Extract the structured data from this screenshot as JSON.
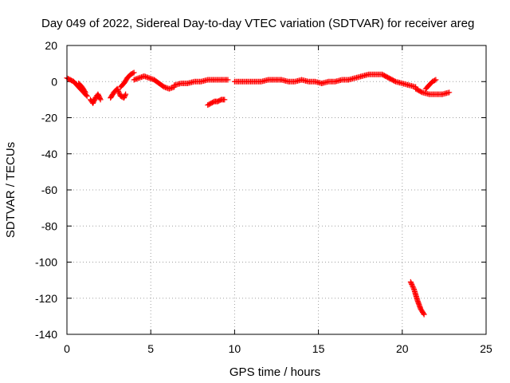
{
  "chart_data": {
    "type": "scatter",
    "title": "Day 049 of 2022, Sidereal Day-to-day VTEC variation (SDTVAR) for receiver areg",
    "xlabel": "GPS time / hours",
    "ylabel": "SDTVAR / TECUs",
    "xlim": [
      0,
      25
    ],
    "ylim": [
      -140,
      20
    ],
    "xticks": [
      0,
      5,
      10,
      15,
      20,
      25
    ],
    "yticks": [
      -140,
      -120,
      -100,
      -80,
      -60,
      -40,
      -20,
      0,
      20
    ],
    "grid": true,
    "marker": "+",
    "color": "#ff0000",
    "series": [
      {
        "name": "SDTVAR",
        "tracks": [
          {
            "x": [
              0.0,
              0.2,
              0.4,
              0.6,
              0.8,
              1.0,
              1.2
            ],
            "y": [
              2,
              1,
              0,
              -2,
              -4,
              -6,
              -8
            ]
          },
          {
            "x": [
              0.7,
              0.9,
              1.1
            ],
            "y": [
              -1,
              -3,
              -6
            ]
          },
          {
            "x": [
              1.4,
              1.55,
              1.7,
              1.85,
              2.0
            ],
            "y": [
              -10,
              -12,
              -9,
              -7,
              -10
            ]
          },
          {
            "x": [
              2.6,
              2.8,
              3.0,
              3.2,
              3.4,
              3.5
            ],
            "y": [
              -9,
              -6,
              -4,
              -8,
              -9,
              -7
            ]
          },
          {
            "x": [
              3.2,
              3.4,
              3.6,
              3.8,
              4.0
            ],
            "y": [
              -3,
              -1,
              2,
              4,
              5
            ]
          },
          {
            "x": [
              4.0,
              4.3,
              4.6,
              4.9,
              5.2,
              5.5,
              5.8,
              6.1,
              6.4
            ],
            "y": [
              1,
              2,
              3,
              2,
              1,
              -1,
              -3,
              -4,
              -3
            ]
          },
          {
            "x": [
              6.4,
              6.8,
              7.2,
              7.6,
              8.0,
              8.4,
              8.8,
              9.2,
              9.6
            ],
            "y": [
              -2,
              -1,
              -1,
              0,
              0,
              1,
              1,
              1,
              1
            ]
          },
          {
            "x": [
              8.4,
              8.6,
              8.8,
              9.0,
              9.2,
              9.4
            ],
            "y": [
              -13,
              -12,
              -11,
              -11,
              -10,
              -10
            ]
          },
          {
            "x": [
              10.0,
              10.4,
              10.8,
              11.2,
              11.6,
              12.0,
              12.4,
              12.8,
              13.2,
              13.6,
              14.0,
              14.4,
              14.8,
              15.2
            ],
            "y": [
              0,
              0,
              0,
              0,
              0,
              1,
              1,
              1,
              0,
              0,
              1,
              0,
              0,
              -1
            ]
          },
          {
            "x": [
              15.2,
              15.6,
              16.0,
              16.4,
              16.8,
              17.2,
              17.6,
              18.0,
              18.4,
              18.8,
              19.2,
              19.6,
              20.0,
              20.4,
              20.8
            ],
            "y": [
              -1,
              0,
              0,
              1,
              1,
              2,
              3,
              4,
              4,
              4,
              2,
              0,
              -1,
              -2,
              -3
            ]
          },
          {
            "x": [
              20.8,
              21.2,
              21.6,
              22.0,
              22.4,
              22.8
            ],
            "y": [
              -4,
              -6,
              -7,
              -7,
              -7,
              -6
            ]
          },
          {
            "x": [
              21.4,
              21.6,
              21.8,
              22.0
            ],
            "y": [
              -4,
              -2,
              0,
              1
            ]
          },
          {
            "x": [
              20.5,
              20.7,
              20.9,
              21.1,
              21.3
            ],
            "y": [
              -111,
              -115,
              -121,
              -126,
              -129
            ]
          }
        ]
      }
    ]
  }
}
